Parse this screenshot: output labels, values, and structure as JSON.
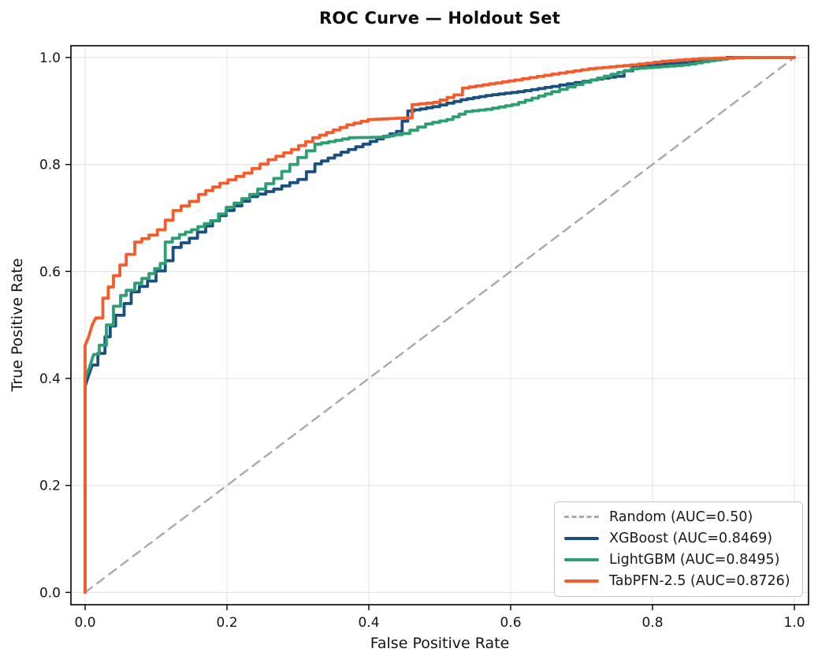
{
  "figure": {
    "title": "ROC Curve — Holdout Set",
    "xlabel": "False Positive Rate",
    "ylabel": "True Positive Rate"
  },
  "colors": {
    "random": "#a9a9a9",
    "xgboost": "#1b4f80",
    "lightgbm": "#2e9e73",
    "tabpfn": "#f55b2b",
    "grid": "#e0e0e0",
    "spine": "#000000",
    "text": "#151515"
  },
  "chart_data": {
    "type": "line",
    "title": "ROC Curve — Holdout Set",
    "xlabel": "False Positive Rate",
    "ylabel": "True Positive Rate",
    "xlim": [
      -0.02,
      1.02
    ],
    "ylim": [
      -0.023,
      1.022
    ],
    "xticks": [
      "0.0",
      "0.2",
      "0.4",
      "0.6",
      "0.8",
      "1.0"
    ],
    "yticks": [
      "0.0",
      "0.2",
      "0.4",
      "0.6",
      "0.8",
      "1.0"
    ],
    "grid": true,
    "legend_position": "lower right",
    "series": [
      {
        "name": "Random (AUC=0.50)",
        "auc": 0.5,
        "color": "#a9a9a9",
        "line_style": "dashed",
        "step": false,
        "points": [
          [
            0,
            0
          ],
          [
            1,
            1
          ]
        ]
      },
      {
        "name": "XGBoost (AUC=0.8469)",
        "auc": 0.8469,
        "color": "#1b4f80",
        "line_style": "solid",
        "step": true,
        "points": [
          [
            0,
            0
          ],
          [
            0,
            0.385
          ],
          [
            0.004,
            0.402
          ],
          [
            0.01,
            0.425
          ],
          [
            0.018,
            0.447
          ],
          [
            0.028,
            0.478
          ],
          [
            0.043,
            0.518
          ],
          [
            0.055,
            0.54
          ],
          [
            0.065,
            0.562
          ],
          [
            0.088,
            0.582
          ],
          [
            0.1,
            0.601
          ],
          [
            0.113,
            0.62
          ],
          [
            0.124,
            0.645
          ],
          [
            0.147,
            0.662
          ],
          [
            0.17,
            0.685
          ],
          [
            0.199,
            0.714
          ],
          [
            0.232,
            0.74
          ],
          [
            0.266,
            0.754
          ],
          [
            0.3,
            0.772
          ],
          [
            0.324,
            0.801
          ],
          [
            0.361,
            0.823
          ],
          [
            0.402,
            0.843
          ],
          [
            0.439,
            0.862
          ],
          [
            0.455,
            0.9
          ],
          [
            0.49,
            0.908
          ],
          [
            0.53,
            0.921
          ],
          [
            0.565,
            0.929
          ],
          [
            0.61,
            0.936
          ],
          [
            0.658,
            0.946
          ],
          [
            0.713,
            0.958
          ],
          [
            0.748,
            0.965
          ],
          [
            0.772,
            0.985
          ],
          [
            0.843,
            0.99
          ],
          [
            0.875,
            0.996
          ],
          [
            0.905,
            1
          ],
          [
            1,
            1
          ]
        ]
      },
      {
        "name": "LightGBM (AUC=0.8495)",
        "auc": 0.8495,
        "color": "#2e9e73",
        "line_style": "solid",
        "step": true,
        "points": [
          [
            0,
            0
          ],
          [
            0,
            0.4
          ],
          [
            0.006,
            0.42
          ],
          [
            0.012,
            0.445
          ],
          [
            0.02,
            0.462
          ],
          [
            0.03,
            0.5
          ],
          [
            0.04,
            0.535
          ],
          [
            0.05,
            0.555
          ],
          [
            0.058,
            0.565
          ],
          [
            0.07,
            0.578
          ],
          [
            0.09,
            0.596
          ],
          [
            0.106,
            0.615
          ],
          [
            0.113,
            0.655
          ],
          [
            0.133,
            0.669
          ],
          [
            0.15,
            0.678
          ],
          [
            0.177,
            0.695
          ],
          [
            0.199,
            0.72
          ],
          [
            0.232,
            0.744
          ],
          [
            0.266,
            0.774
          ],
          [
            0.3,
            0.813
          ],
          [
            0.324,
            0.838
          ],
          [
            0.372,
            0.85
          ],
          [
            0.413,
            0.851
          ],
          [
            0.447,
            0.858
          ],
          [
            0.48,
            0.876
          ],
          [
            0.51,
            0.884
          ],
          [
            0.536,
            0.899
          ],
          [
            0.565,
            0.903
          ],
          [
            0.602,
            0.912
          ],
          [
            0.658,
            0.936
          ],
          [
            0.713,
            0.958
          ],
          [
            0.77,
            0.979
          ],
          [
            0.843,
            0.986
          ],
          [
            0.88,
            0.994
          ],
          [
            0.915,
            1
          ],
          [
            1,
            1
          ]
        ]
      },
      {
        "name": "TabPFN-2.5 (AUC=0.8726)",
        "auc": 0.8726,
        "color": "#f55b2b",
        "line_style": "solid",
        "step": true,
        "points": [
          [
            0,
            0
          ],
          [
            0,
            0.462
          ],
          [
            0.005,
            0.478
          ],
          [
            0.01,
            0.5
          ],
          [
            0.015,
            0.513
          ],
          [
            0.025,
            0.55
          ],
          [
            0.04,
            0.592
          ],
          [
            0.058,
            0.632
          ],
          [
            0.07,
            0.655
          ],
          [
            0.09,
            0.668
          ],
          [
            0.102,
            0.678
          ],
          [
            0.124,
            0.714
          ],
          [
            0.147,
            0.731
          ],
          [
            0.16,
            0.744
          ],
          [
            0.19,
            0.765
          ],
          [
            0.224,
            0.784
          ],
          [
            0.258,
            0.809
          ],
          [
            0.291,
            0.828
          ],
          [
            0.321,
            0.85
          ],
          [
            0.369,
            0.874
          ],
          [
            0.399,
            0.884
          ],
          [
            0.447,
            0.887
          ],
          [
            0.461,
            0.912
          ],
          [
            0.491,
            0.916
          ],
          [
            0.52,
            0.93
          ],
          [
            0.532,
            0.943
          ],
          [
            0.561,
            0.949
          ],
          [
            0.606,
            0.958
          ],
          [
            0.658,
            0.969
          ],
          [
            0.71,
            0.979
          ],
          [
            0.769,
            0.986
          ],
          [
            0.813,
            0.993
          ],
          [
            0.866,
            0.998
          ],
          [
            0.928,
            1
          ],
          [
            1,
            1
          ]
        ]
      }
    ]
  }
}
